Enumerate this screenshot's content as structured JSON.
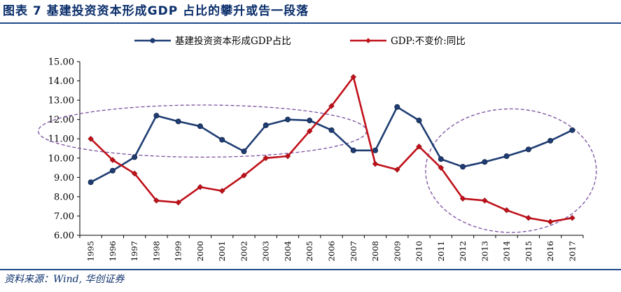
{
  "figure": {
    "title": "图表 7  基建投资资本形成GDP 占比的攀升或告一段落",
    "source": "资料来源：Wind, 华创证券"
  },
  "colors": {
    "series1": "#1f3d73",
    "series2": "#c0111a",
    "ellipse": "#7a4fa0",
    "axis": "#000000",
    "rule": "#1f4a8c"
  },
  "chart_data": {
    "type": "line",
    "title": "",
    "xlabel": "",
    "ylabel": "",
    "ylim": [
      6,
      15
    ],
    "yticks": [
      "6.00",
      "7.00",
      "8.00",
      "9.00",
      "10.00",
      "11.00",
      "12.00",
      "13.00",
      "14.00",
      "15.00"
    ],
    "ytick_values": [
      6,
      7,
      8,
      9,
      10,
      11,
      12,
      13,
      14,
      15
    ],
    "categories": [
      "1995",
      "1996",
      "1997",
      "1998",
      "1999",
      "2000",
      "2001",
      "2002",
      "2003",
      "2004",
      "2005",
      "2006",
      "2007",
      "2008",
      "2009",
      "2010",
      "2011",
      "2012",
      "2013",
      "2014",
      "2015",
      "2016",
      "2017"
    ],
    "series": [
      {
        "name": "基建投资资本形成GDP占比",
        "marker": "circle",
        "values": [
          8.75,
          9.35,
          10.05,
          12.2,
          11.9,
          11.65,
          10.95,
          10.35,
          11.7,
          12.0,
          11.95,
          11.45,
          10.4,
          10.4,
          12.65,
          11.95,
          9.95,
          9.55,
          9.8,
          10.1,
          10.45,
          10.9,
          11.45
        ]
      },
      {
        "name": "GDP:不变价:同比",
        "marker": "diamond",
        "values": [
          11.0,
          9.9,
          9.2,
          7.8,
          7.7,
          8.5,
          8.3,
          9.1,
          10.0,
          10.1,
          11.4,
          12.7,
          14.2,
          9.7,
          9.4,
          10.6,
          9.5,
          7.9,
          7.8,
          7.3,
          6.9,
          6.7,
          6.9
        ]
      }
    ],
    "legend_position": "top"
  }
}
